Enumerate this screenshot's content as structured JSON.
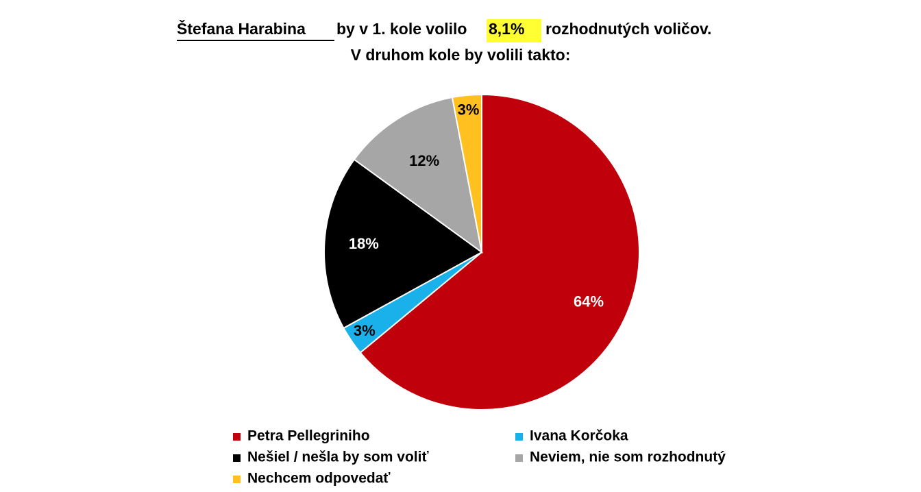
{
  "chart_data": {
    "type": "pie",
    "title": [
      "Štefana Harabina",
      "by v 1. kole volilo",
      "8,1%",
      "rozhodnutých voličov."
    ],
    "subtitle": "V druhom kole by volili takto:",
    "series": [
      {
        "name": "Petra Pellegriniho",
        "color": "#c0000b",
        "values": [
          64
        ],
        "value_labels": [
          "64%"
        ]
      },
      {
        "name": "Ivana Korčoka",
        "color": "#1ab0ea",
        "values": [
          3
        ],
        "value_labels": [
          "3%"
        ]
      },
      {
        "name": "Nešiel / nešla by som voliť",
        "color": "#000000",
        "values": [
          18
        ],
        "value_labels": [
          "18%"
        ]
      },
      {
        "name": "Neviem, nie som rozhodnutý",
        "color": "#a6a6a6",
        "values": [
          12
        ],
        "value_labels": [
          "12%"
        ]
      },
      {
        "name": "Nechcem odpovedať",
        "color": "#ffc020",
        "values": [
          3
        ],
        "value_labels": [
          "3%"
        ]
      }
    ]
  }
}
